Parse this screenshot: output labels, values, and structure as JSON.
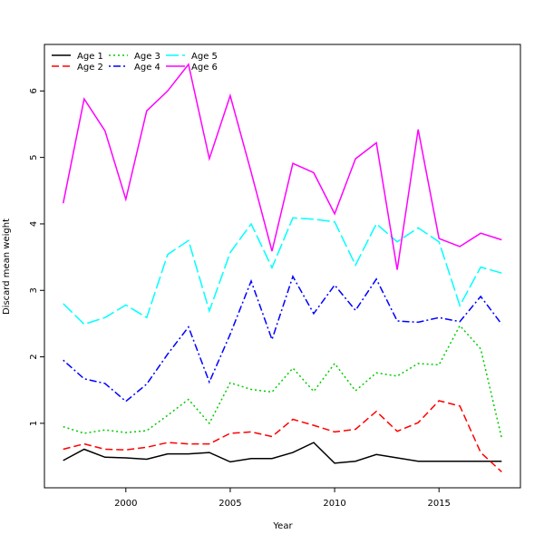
{
  "chart_data": {
    "type": "line",
    "title": "",
    "xlabel": "Year",
    "ylabel": "Discard mean weight",
    "xlim": [
      1996.1,
      2018.9
    ],
    "ylim": [
      0.03,
      6.7
    ],
    "xticks": [
      2000,
      2005,
      2010,
      2015
    ],
    "yticks": [
      1,
      2,
      3,
      4,
      5,
      6
    ],
    "legend_position": "top-left",
    "x": [
      1997,
      1998,
      1999,
      2000,
      2001,
      2002,
      2003,
      2004,
      2005,
      2006,
      2007,
      2008,
      2009,
      2010,
      2011,
      2012,
      2013,
      2014,
      2015,
      2016,
      2017,
      2018
    ],
    "series": [
      {
        "name": "Age 1",
        "color": "#000000",
        "dash": "solid",
        "values": [
          0.44,
          0.61,
          0.49,
          0.48,
          0.46,
          0.54,
          0.54,
          0.56,
          0.42,
          0.47,
          0.47,
          0.56,
          0.71,
          0.4,
          0.43,
          0.53,
          0.48,
          0.43,
          0.43,
          0.43,
          0.43,
          0.43
        ]
      },
      {
        "name": "Age 2",
        "color": "#ff0000",
        "dash": "dashed",
        "values": [
          0.61,
          0.69,
          0.61,
          0.6,
          0.64,
          0.71,
          0.69,
          0.69,
          0.85,
          0.87,
          0.8,
          1.06,
          0.97,
          0.87,
          0.91,
          1.18,
          0.88,
          1.01,
          1.34,
          1.26,
          0.56,
          0.27
        ]
      },
      {
        "name": "Age 3",
        "color": "#00cc00",
        "dash": "dotted",
        "values": [
          0.95,
          0.85,
          0.9,
          0.86,
          0.89,
          1.12,
          1.36,
          1.0,
          1.61,
          1.51,
          1.47,
          1.83,
          1.48,
          1.9,
          1.49,
          1.76,
          1.71,
          1.9,
          1.88,
          2.47,
          2.12,
          0.78
        ]
      },
      {
        "name": "Age 4",
        "color": "#0000ff",
        "dash": "dotdash",
        "values": [
          1.95,
          1.67,
          1.6,
          1.33,
          1.59,
          2.04,
          2.45,
          1.62,
          2.34,
          3.14,
          2.26,
          3.21,
          2.65,
          3.08,
          2.7,
          3.17,
          2.54,
          2.52,
          2.59,
          2.53,
          2.91,
          2.49
        ]
      },
      {
        "name": "Age 5",
        "color": "#00ffff",
        "dash": "longdash",
        "values": [
          2.8,
          2.49,
          2.59,
          2.78,
          2.59,
          3.54,
          3.75,
          2.69,
          3.57,
          4.0,
          3.34,
          4.09,
          4.07,
          4.03,
          3.38,
          4.0,
          3.73,
          3.94,
          3.73,
          2.77,
          3.35,
          3.26
        ]
      },
      {
        "name": "Age 6",
        "color": "#ff00ff",
        "dash": "solid",
        "values": [
          4.31,
          5.88,
          5.4,
          4.37,
          5.7,
          6.0,
          6.4,
          4.98,
          5.93,
          4.78,
          3.59,
          4.91,
          4.77,
          4.15,
          4.98,
          5.22,
          3.31,
          5.42,
          3.78,
          3.66,
          3.86,
          3.76
        ]
      }
    ]
  }
}
